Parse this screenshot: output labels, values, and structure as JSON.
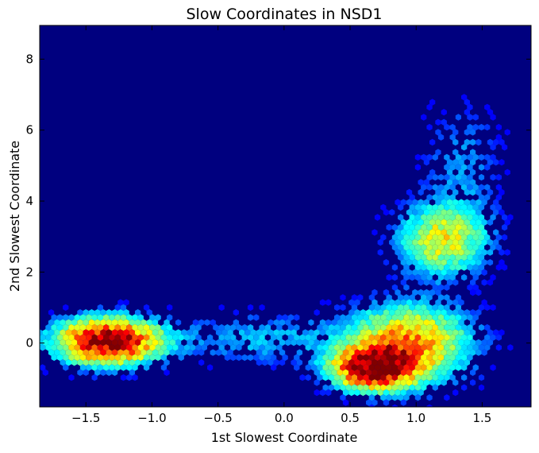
{
  "chart_data": {
    "type": "heatmap",
    "subtype": "hexbin",
    "title": "Slow Coordinates in NSD1",
    "xlabel": "1st Slowest Coordinate",
    "ylabel": "2nd Slowest Coordinate",
    "xlim": [
      -1.85,
      1.87
    ],
    "ylim": [
      -1.8,
      8.95
    ],
    "xticks": [
      -1.5,
      -1.0,
      -0.5,
      0.0,
      0.5,
      1.0,
      1.5
    ],
    "xtick_labels": [
      "−1.5",
      "−1.0",
      "−0.5",
      "0.0",
      "0.5",
      "1.0",
      "1.5"
    ],
    "yticks": [
      0,
      2,
      4,
      6,
      8
    ],
    "ytick_labels": [
      "0",
      "2",
      "4",
      "6",
      "8"
    ],
    "colormap": "jet",
    "background_color": "#00007f",
    "grid": false,
    "density_clusters": [
      {
        "center_x": -1.33,
        "center_y": 0.05,
        "spread_x": 0.26,
        "spread_y": 0.42,
        "relative_peak": 1.0
      },
      {
        "center_x": 0.68,
        "center_y": -0.7,
        "spread_x": 0.2,
        "spread_y": 0.4,
        "relative_peak": 1.0
      },
      {
        "center_x": 0.95,
        "center_y": 0.0,
        "spread_x": 0.3,
        "spread_y": 0.7,
        "relative_peak": 0.6
      },
      {
        "center_x": 1.2,
        "center_y": 2.9,
        "spread_x": 0.22,
        "spread_y": 0.65,
        "relative_peak": 0.45
      },
      {
        "center_x": -0.15,
        "center_y": 0.1,
        "spread_x": 0.45,
        "spread_y": 0.5,
        "relative_peak": 0.15
      },
      {
        "center_x": 1.35,
        "center_y": 5.0,
        "spread_x": 0.2,
        "spread_y": 1.2,
        "relative_peak": 0.12
      }
    ]
  }
}
